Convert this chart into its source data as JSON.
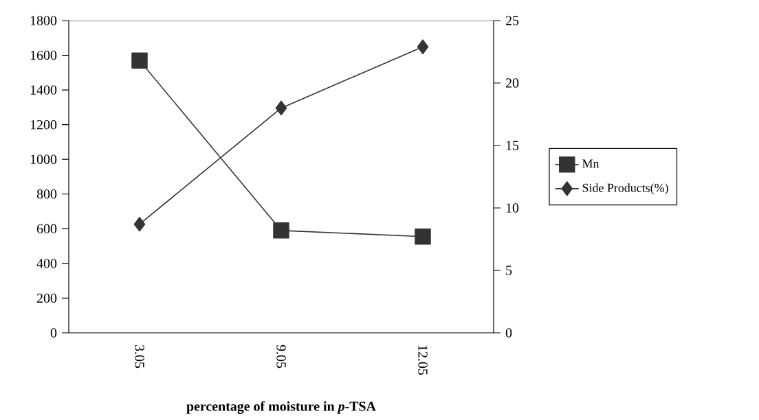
{
  "chart_data": {
    "type": "line",
    "xlabel": "percentage of moisture in *p*-TSA",
    "categories": [
      "3.05",
      "9.05",
      "12.05"
    ],
    "series": [
      {
        "name": "Mn",
        "color": "#333333",
        "marker": "square",
        "values": [
          1570,
          590,
          555
        ]
      },
      {
        "name": "Side Products(%)",
        "color": "#333333",
        "marker": "diamond",
        "axis": "y2",
        "values": [
          8.7,
          18.0,
          22.9
        ]
      }
    ],
    "ylim": [
      0,
      1800
    ],
    "yticks": [
      0,
      200,
      400,
      600,
      800,
      1000,
      1200,
      1400,
      1600,
      1800
    ],
    "y2lim": [
      0,
      25
    ],
    "y2ticks": [
      0,
      5,
      10,
      15,
      20,
      25
    ],
    "grid": false,
    "legend": "right",
    "line_style": "solid"
  }
}
